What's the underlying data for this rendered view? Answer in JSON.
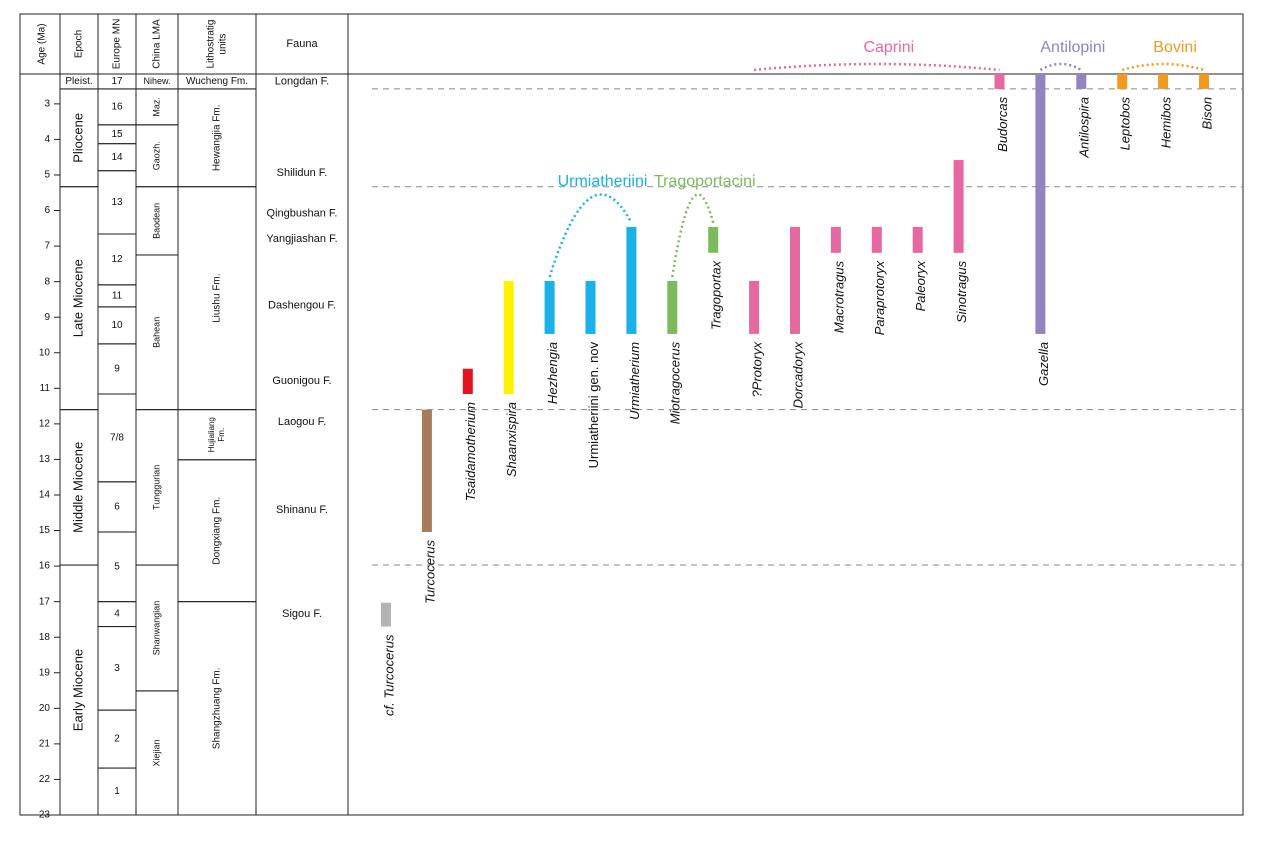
{
  "chart_data": {
    "type": "range",
    "y_label": "Age (Ma)",
    "ylim": [
      2.16,
      23
    ],
    "yticks": [
      3,
      4,
      5,
      6,
      7,
      8,
      9,
      10,
      11,
      12,
      13,
      14,
      15,
      16,
      17,
      18,
      19,
      20,
      21,
      22,
      23
    ],
    "headers": [
      "Epoch",
      "Europe MN",
      "China LMA",
      [
        "Lithostratig",
        "units"
      ],
      "Fauna"
    ],
    "epochs": [
      {
        "name": "Pleist.",
        "top": 2.16,
        "bottom": 2.58
      },
      {
        "name": "Pliocene",
        "top": 2.58,
        "bottom": 5.33
      },
      {
        "name": "Late Miocene",
        "top": 5.33,
        "bottom": 11.6
      },
      {
        "name": "Middle Miocene",
        "top": 11.6,
        "bottom": 15.97
      },
      {
        "name": "Early Miocene",
        "top": 15.97,
        "bottom": 23
      }
    ],
    "mn_zones": [
      {
        "name": "17",
        "top": 2.16,
        "bottom": 2.58
      },
      {
        "name": "16",
        "top": 2.58,
        "bottom": 3.59
      },
      {
        "name": "15",
        "top": 3.59,
        "bottom": 4.12
      },
      {
        "name": "14",
        "top": 4.12,
        "bottom": 4.88
      },
      {
        "name": "13",
        "top": 4.88,
        "bottom": 6.66
      },
      {
        "name": "12",
        "top": 6.66,
        "bottom": 8.09
      },
      {
        "name": "11",
        "top": 8.09,
        "bottom": 8.71
      },
      {
        "name": "10",
        "top": 8.71,
        "bottom": 9.75
      },
      {
        "name": "9",
        "top": 9.75,
        "bottom": 11.16
      },
      {
        "name": "7/8",
        "top": 11.16,
        "bottom": 13.63
      },
      {
        "name": "6",
        "top": 13.63,
        "bottom": 15.04
      },
      {
        "name": "5",
        "top": 15.04,
        "bottom": 17.0
      },
      {
        "name": "4",
        "top": 17.0,
        "bottom": 17.7
      },
      {
        "name": "3",
        "top": 17.7,
        "bottom": 20.05
      },
      {
        "name": "2",
        "top": 20.05,
        "bottom": 21.68
      },
      {
        "name": "1",
        "top": 21.68,
        "bottom": 23
      }
    ],
    "china_lma": [
      {
        "name": "Nihew.",
        "top": 2.16,
        "bottom": 2.58
      },
      {
        "name": "Maz.",
        "top": 2.58,
        "bottom": 3.59
      },
      {
        "name": "Gaozh.",
        "top": 3.59,
        "bottom": 5.33
      },
      {
        "name": "Baodean",
        "top": 5.33,
        "bottom": 7.25
      },
      {
        "name": "Bahean",
        "top": 7.25,
        "bottom": 11.6
      },
      {
        "name": "Tunggurian",
        "top": 11.6,
        "bottom": 15.97
      },
      {
        "name": "Shanwangian",
        "top": 15.97,
        "bottom": 19.51
      },
      {
        "name": "Xiejian",
        "top": 19.51,
        "bottom": 23
      }
    ],
    "lithostratigraphy": [
      {
        "name": "Wucheng Fm.",
        "top": 2.16,
        "bottom": 2.58
      },
      {
        "name": "Hewangjia Fm.",
        "top": 2.58,
        "bottom": 5.33
      },
      {
        "name": "Liushu Fm.",
        "top": 5.33,
        "bottom": 11.6
      },
      {
        "name": [
          "Hujialiang",
          "Fm."
        ],
        "top": 11.6,
        "bottom": 13.01
      },
      {
        "name": "Dongxiang Fm.",
        "top": 13.01,
        "bottom": 17.0
      },
      {
        "name": "Shangzhuang Fm.",
        "top": 17.0,
        "bottom": 23
      }
    ],
    "faunas": [
      {
        "name": "Longdan F.",
        "age": 2.38
      },
      {
        "name": "Shilidun F.",
        "age": 4.94
      },
      {
        "name": "Qingbushan F.",
        "age": 6.09
      },
      {
        "name": "Yangjiashan F.",
        "age": 6.8
      },
      {
        "name": "Dashengou F.",
        "age": 8.68
      },
      {
        "name": "Guonigou F.",
        "age": 10.79
      },
      {
        "name": "Laogou F.",
        "age": 11.95
      },
      {
        "name": "Shinanu F.",
        "age": 14.42
      },
      {
        "name": "Sigou F.",
        "age": 17.35
      }
    ],
    "taxa": [
      {
        "name": "cf. Turcocerus",
        "range": [
          17.03,
          17.7
        ],
        "color": "#b3b3b3",
        "italic": true
      },
      {
        "name": "Turcocerus",
        "range": [
          11.6,
          15.04
        ],
        "color": "#a67c5b",
        "italic": true
      },
      {
        "name": "Tsaidamotherium",
        "range": [
          10.45,
          11.16
        ],
        "color": "#e3141f",
        "italic": true
      },
      {
        "name": "Shaanxispira",
        "range": [
          7.98,
          11.16
        ],
        "color": "#fff200",
        "italic": true
      },
      {
        "name": "Hezhengia",
        "range": [
          7.98,
          9.47
        ],
        "color": "#1ab0e8",
        "italic": true
      },
      {
        "name": "Urmiatheriini gen. nov",
        "range": [
          7.98,
          9.47
        ],
        "color": "#1ab0e8",
        "italic": false
      },
      {
        "name": "Urmiatherium",
        "range": [
          6.46,
          9.47
        ],
        "color": "#1ab0e8",
        "italic": true
      },
      {
        "name": "Miotragocerus",
        "range": [
          7.98,
          9.47
        ],
        "color": "#7cbb5c",
        "italic": true
      },
      {
        "name": "Tragoportax",
        "range": [
          6.46,
          7.19
        ],
        "color": "#7cbb5c",
        "italic": true
      },
      {
        "name": "?Protoryx",
        "range": [
          7.98,
          9.47
        ],
        "color": "#e668a0",
        "italic": true
      },
      {
        "name": "Dorcadoryx",
        "range": [
          6.46,
          9.47
        ],
        "color": "#e668a0",
        "italic": true
      },
      {
        "name": "Macrotragus",
        "range": [
          6.46,
          7.19
        ],
        "color": "#e668a0",
        "italic": true
      },
      {
        "name": "Paraprotoryx",
        "range": [
          6.46,
          7.19
        ],
        "color": "#e668a0",
        "italic": true
      },
      {
        "name": "Paleoryx",
        "range": [
          6.46,
          7.19
        ],
        "color": "#e668a0",
        "italic": true
      },
      {
        "name": "Sinotragus",
        "range": [
          4.58,
          7.19
        ],
        "color": "#e668a0",
        "italic": true
      },
      {
        "name": "Budorcas",
        "range": [
          2.16,
          2.58
        ],
        "color": "#e668a0",
        "italic": true
      },
      {
        "name": "Gazella",
        "range": [
          2.16,
          9.47
        ],
        "color": "#9383c0",
        "italic": true
      },
      {
        "name": "Antilospira",
        "range": [
          2.16,
          2.58
        ],
        "color": "#9383c0",
        "italic": true
      },
      {
        "name": "Leptobos",
        "range": [
          2.16,
          2.58
        ],
        "color": "#f09a20",
        "italic": true
      },
      {
        "name": "Hemibos",
        "range": [
          2.16,
          2.58
        ],
        "color": "#f09a20",
        "italic": true
      },
      {
        "name": "Bison",
        "range": [
          2.16,
          2.58
        ],
        "color": "#f09a20",
        "italic": true
      }
    ],
    "groups": [
      {
        "name": "Urmiatheriini",
        "color": "#1ab0e8",
        "members": [
          4,
          5,
          6
        ]
      },
      {
        "name": "Tragoportacini",
        "color": "#7cbb5c",
        "members": [
          7,
          8
        ]
      },
      {
        "name": "Caprini",
        "color": "#e668a0",
        "members": [
          9,
          10,
          11,
          12,
          13,
          14,
          15
        ]
      },
      {
        "name": "Antilopini",
        "color": "#9383c0",
        "members": [
          16,
          17
        ]
      },
      {
        "name": "Bovini",
        "color": "#f09a20",
        "members": [
          18,
          19,
          20
        ]
      }
    ]
  }
}
